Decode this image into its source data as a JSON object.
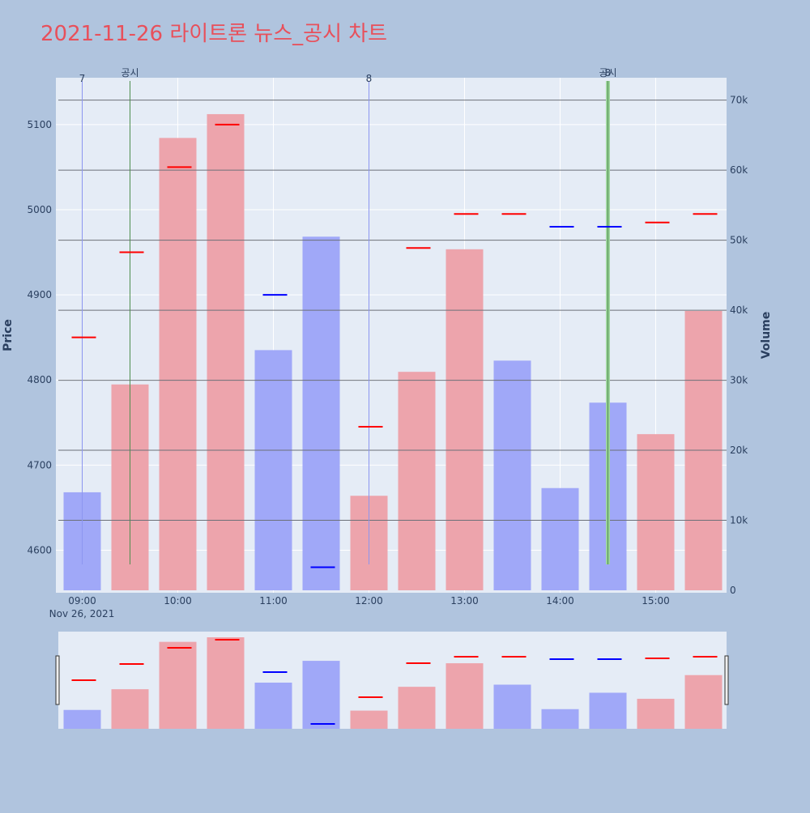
{
  "chart_data": {
    "type": "bar",
    "title": "2021-11-26 라이트론 뉴스_공시 차트",
    "title_color": "#e8505b",
    "x_ticks": [
      "09:00",
      "10:00",
      "11:00",
      "12:00",
      "13:00",
      "14:00",
      "15:00"
    ],
    "x_date_label": "Nov 26, 2021",
    "ylabel_left": "Price",
    "ylabel_right": "Volume",
    "price_axis": {
      "range": [
        4550,
        5155
      ],
      "ticks": [
        4600,
        4700,
        4800,
        4900,
        5000,
        5100
      ]
    },
    "volume_axis": {
      "range": [
        0,
        71000
      ],
      "ticks": [
        0,
        10000,
        20000,
        30000,
        40000,
        50000,
        60000,
        70000
      ],
      "tick_labels": [
        "0",
        "10k",
        "20k",
        "30k",
        "40k",
        "50k",
        "60k",
        "70k"
      ]
    },
    "categories": [
      "09:00",
      "09:30",
      "10:00",
      "10:30",
      "11:00",
      "11:30",
      "12:00",
      "12:30",
      "13:00",
      "13:30",
      "14:00",
      "14:30",
      "15:00",
      "15:30"
    ],
    "series": [
      {
        "kind": "volume-bar",
        "values": [
          14000,
          29400,
          64600,
          68000,
          34300,
          50500,
          13500,
          31200,
          48700,
          32800,
          14600,
          26800,
          22300,
          39900
        ],
        "colors": [
          "blue",
          "red",
          "red",
          "red",
          "blue",
          "blue",
          "red",
          "red",
          "red",
          "blue",
          "blue",
          "blue",
          "red",
          "red"
        ]
      },
      {
        "kind": "price-tick",
        "values": [
          4850,
          4950,
          5050,
          5100,
          4900,
          4580,
          4745,
          4955,
          4995,
          4995,
          4980,
          4980,
          4985,
          4995
        ],
        "colors": [
          "red",
          "red",
          "red",
          "red",
          "blue",
          "blue",
          "red",
          "red",
          "red",
          "red",
          "blue",
          "blue",
          "red",
          "red"
        ]
      }
    ],
    "annotations": [
      {
        "category": "09:00",
        "label": "7",
        "line_color": "blue"
      },
      {
        "category": "09:30",
        "label": "공시",
        "line_color": "green"
      },
      {
        "category": "12:00",
        "label": "8",
        "line_color": "blue"
      },
      {
        "category": "14:30",
        "label": "공시",
        "line_color": "green"
      },
      {
        "category": "14:30",
        "label": "8",
        "line_color": "green"
      }
    ],
    "colors": {
      "page_bg": "#b0c4de",
      "plot_bg": "#e5ecf6",
      "bar_red": "#eda4ac",
      "bar_blue": "#a0a8f8",
      "tick_red": "#ff0000",
      "tick_blue": "#0000ff",
      "line_blue": "#8c96f0",
      "line_green": "#4f8f4f",
      "line_green_bold": "#9bd39b",
      "grid": "#ffffff",
      "volume_grid": "#6c7078",
      "axis_text": "#2a3f5f"
    },
    "legend": "none",
    "grid": true
  }
}
